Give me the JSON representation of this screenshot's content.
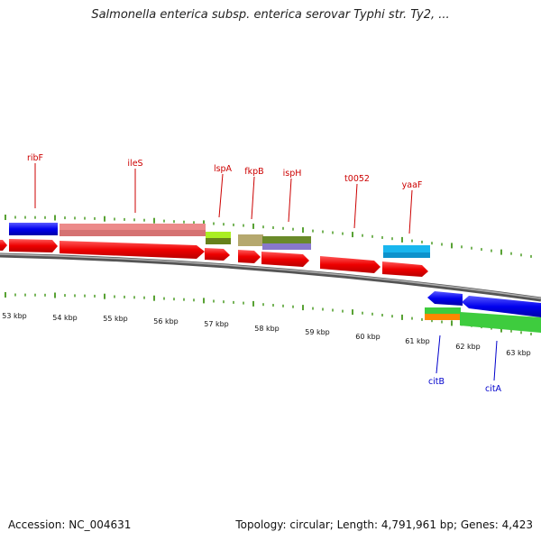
{
  "title": "Salmonella enterica subsp. enterica serovar Typhi str. Ty2, ...",
  "footer": {
    "accession": "Accession: NC_004631",
    "summary": "Topology: circular; Length: 4,791,961 bp; Genes: 4,423"
  },
  "kbp_labels": [
    "53 kbp",
    "54 kbp",
    "55 kbp",
    "56 kbp",
    "57 kbp",
    "58 kbp",
    "59 kbp",
    "60 kbp",
    "61 kbp",
    "62 kbp",
    "63 kbp"
  ],
  "genes_top": [
    "ribF",
    "ileS",
    "lspA",
    "fkpB",
    "ispH",
    "t0052",
    "yaaF"
  ],
  "genes_bottom": [
    "citB",
    "citA"
  ],
  "colors": {
    "forward_gene": "#ff0000",
    "reverse_gene": "#0000ff",
    "top_label": "#cc0000",
    "bottom_label": "#0000cc",
    "tick": "#2e8b00",
    "backbone": "#808080"
  }
}
